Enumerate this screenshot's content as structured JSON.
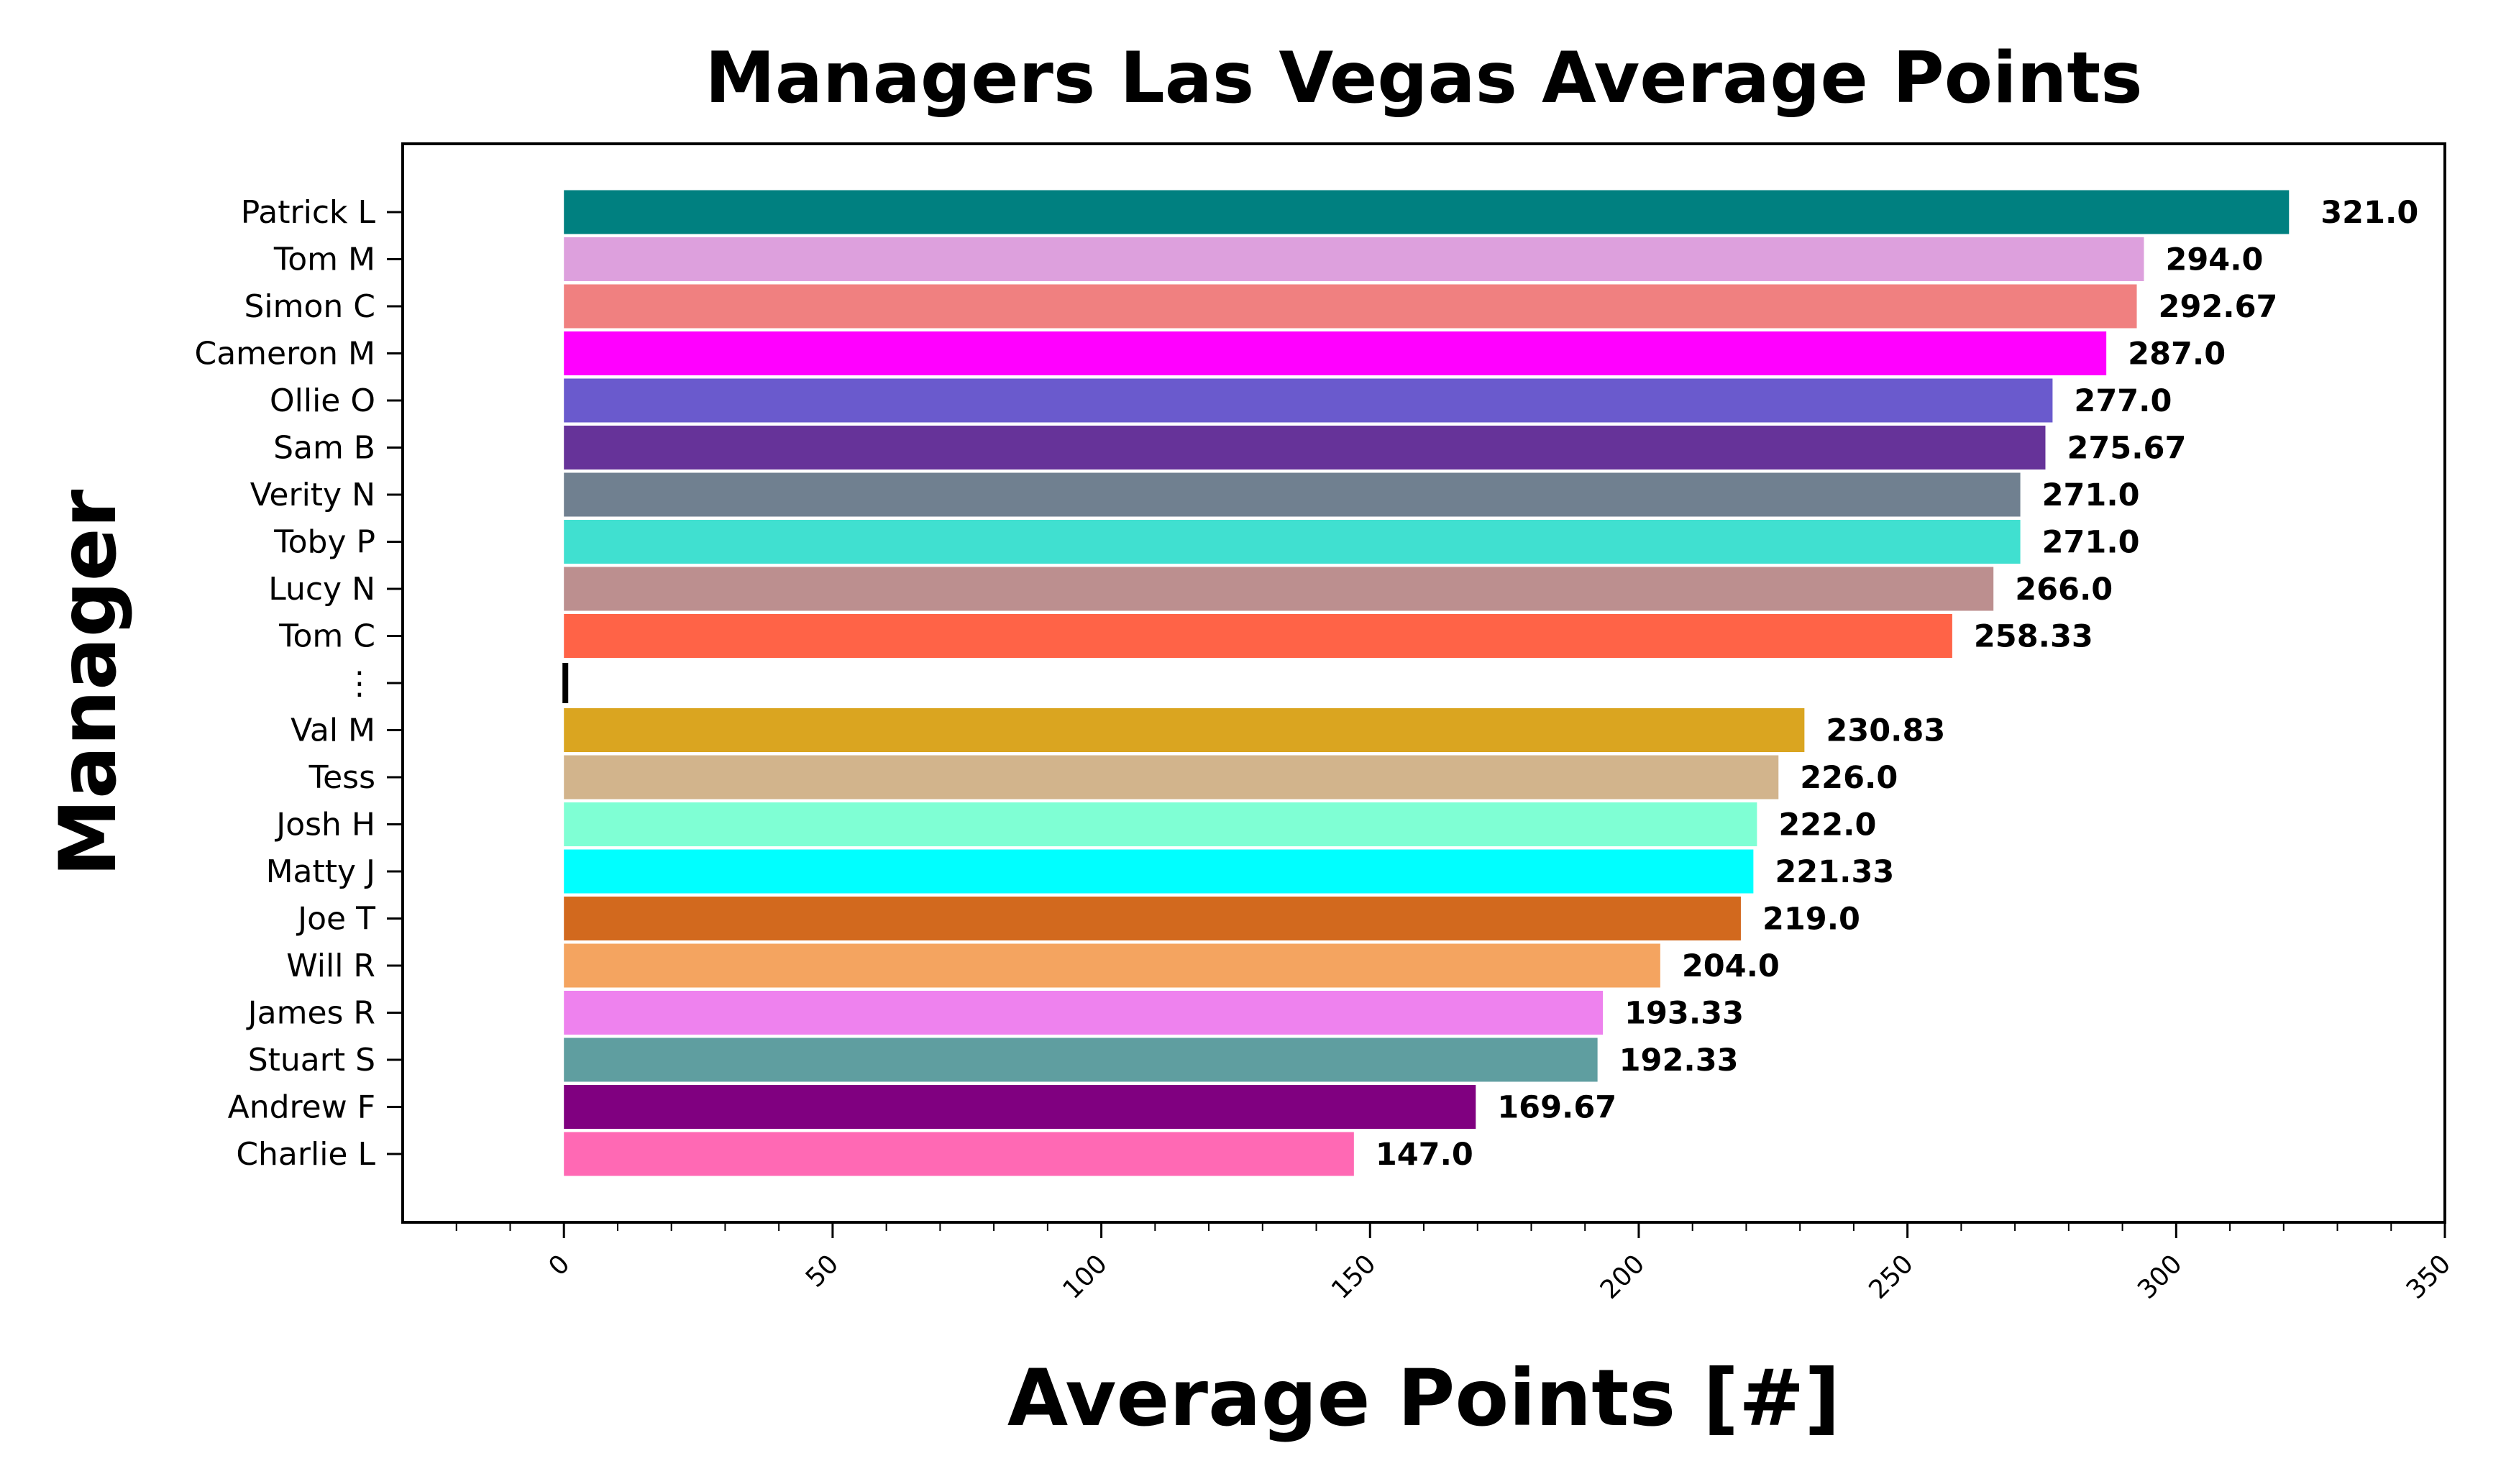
{
  "chart_data": {
    "type": "bar",
    "orientation": "horizontal",
    "title": "Managers Las Vegas Average Points",
    "xlabel": "Average Points [#]",
    "ylabel": "Manager",
    "xlim": [
      -30,
      350
    ],
    "xticks": [
      "0",
      "50",
      "100",
      "150",
      "200",
      "250",
      "300",
      "350"
    ],
    "categories": [
      "Patrick L",
      "Tom M",
      "Simon C",
      "Cameron M",
      "Ollie O",
      "Sam B",
      "Verity N",
      "Toby P",
      "Lucy N",
      "Tom C",
      "⋮",
      "Val M",
      "Tess",
      "Josh H",
      "Matty J",
      "Joe T",
      "Will R",
      "James R",
      "Stuart S",
      "Andrew F",
      "Charlie L"
    ],
    "values": [
      321.0,
      294.0,
      292.67,
      287.0,
      277.0,
      275.67,
      271.0,
      271.0,
      266.0,
      258.33,
      0.7,
      230.83,
      226.0,
      222.0,
      221.33,
      219.0,
      204.0,
      193.33,
      192.33,
      169.67,
      147.0
    ],
    "value_labels": [
      "321.0",
      "294.0",
      "292.67",
      "287.0",
      "277.0",
      "275.67",
      "271.0",
      "271.0",
      "266.0",
      "258.33",
      "",
      "230.83",
      "226.0",
      "222.0",
      "221.33",
      "219.0",
      "204.0",
      "193.33",
      "192.33",
      "169.67",
      "147.0"
    ],
    "colors": [
      "#008080",
      "#DDA0DD",
      "#F08080",
      "#FF00FF",
      "#6A5ACD",
      "#663399",
      "#708090",
      "#40E0D0",
      "#BC8F8F",
      "#FF6347",
      "#000000",
      "#DAA520",
      "#D2B48C",
      "#7FFFD4",
      "#00FFFF",
      "#D2691E",
      "#F4A460",
      "#EE82EE",
      "#5F9EA0",
      "#800080",
      "#FF69B4"
    ],
    "grid": false,
    "legend": "none"
  }
}
